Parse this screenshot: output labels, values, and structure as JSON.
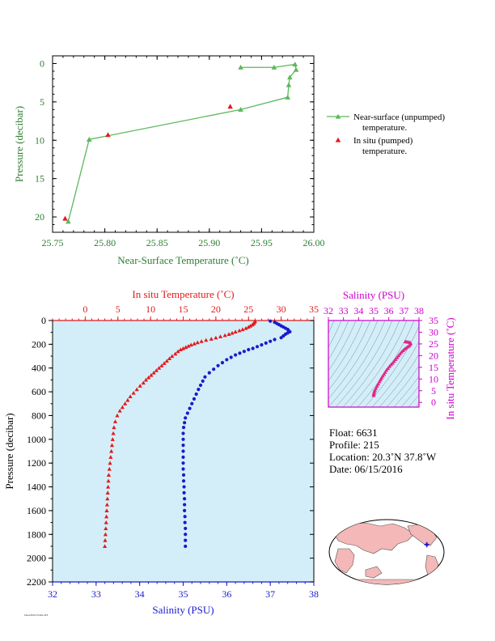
{
  "chart_data": [
    {
      "type": "line",
      "xlabel": "Near-Surface Temperature (˚C)",
      "ylabel": "Pressure (decibar)",
      "xlim": [
        25.75,
        26.0
      ],
      "ylim": [
        22,
        -1
      ],
      "xticks": [
        "25.75",
        "25.80",
        "25.85",
        "25.90",
        "25.95",
        "26.00"
      ],
      "yticks": [
        "0",
        "5",
        "10",
        "15",
        "20"
      ],
      "series": [
        {
          "name": "Near-surface (unpumped) temperature.",
          "color": "#5cb85c",
          "marker": "triangle",
          "points": [
            [
              25.93,
              0.5
            ],
            [
              25.962,
              0.5
            ],
            [
              25.982,
              0.1
            ],
            [
              25.983,
              0.8
            ],
            [
              25.977,
              1.8
            ],
            [
              25.976,
              2.8
            ],
            [
              25.975,
              4.4
            ],
            [
              25.93,
              6.0
            ],
            [
              25.785,
              9.9
            ],
            [
              25.765,
              20.6
            ]
          ]
        },
        {
          "name": "In situ (pumped) temperature.",
          "color": "#e31a1c",
          "marker": "triangle",
          "points": [
            [
              25.92,
              5.6
            ],
            [
              25.803,
              9.3
            ],
            [
              25.762,
              20.2
            ]
          ]
        }
      ],
      "legend": [
        "Near-surface (unpumped)",
        "temperature.",
        "In situ (pumped)",
        "temperature."
      ]
    },
    {
      "type": "scatter",
      "ylabel": "Pressure (decibar)",
      "top_xlabel": "In situ Temperature (˚C)",
      "bottom_xlabel": "Salinity (PSU)",
      "temp_lim": [
        -5,
        35
      ],
      "sal_lim": [
        32,
        38
      ],
      "ylim": [
        2200,
        0
      ],
      "top_ticks": [
        "0",
        "5",
        "10",
        "15",
        "20",
        "25",
        "30",
        "35"
      ],
      "bottom_ticks": [
        "32",
        "33",
        "34",
        "35",
        "36",
        "37",
        "38"
      ],
      "yticks": [
        "0",
        "200",
        "400",
        "600",
        "800",
        "1000",
        "1200",
        "1400",
        "1600",
        "1800",
        "2000",
        "2200"
      ],
      "temperature": [
        [
          26.0,
          5
        ],
        [
          25.9,
          15
        ],
        [
          25.8,
          25
        ],
        [
          25.6,
          35
        ],
        [
          25.3,
          45
        ],
        [
          25.0,
          55
        ],
        [
          24.6,
          65
        ],
        [
          24.1,
          75
        ],
        [
          23.6,
          85
        ],
        [
          23.0,
          95
        ],
        [
          22.5,
          105
        ],
        [
          22.0,
          115
        ],
        [
          21.4,
          125
        ],
        [
          20.7,
          135
        ],
        [
          20.0,
          145
        ],
        [
          19.3,
          155
        ],
        [
          18.5,
          165
        ],
        [
          17.8,
          175
        ],
        [
          17.2,
          185
        ],
        [
          16.7,
          195
        ],
        [
          16.2,
          205
        ],
        [
          15.8,
          215
        ],
        [
          15.4,
          225
        ],
        [
          15.0,
          235
        ],
        [
          14.6,
          245
        ],
        [
          14.2,
          260
        ],
        [
          13.8,
          280
        ],
        [
          13.3,
          300
        ],
        [
          12.9,
          320
        ],
        [
          12.5,
          340
        ],
        [
          12.1,
          360
        ],
        [
          11.7,
          380
        ],
        [
          11.3,
          400
        ],
        [
          10.9,
          420
        ],
        [
          10.5,
          440
        ],
        [
          10.1,
          460
        ],
        [
          9.7,
          480
        ],
        [
          9.3,
          500
        ],
        [
          8.9,
          525
        ],
        [
          8.4,
          550
        ],
        [
          7.9,
          580
        ],
        [
          7.4,
          610
        ],
        [
          6.9,
          640
        ],
        [
          6.5,
          670
        ],
        [
          6.1,
          700
        ],
        [
          5.7,
          730
        ],
        [
          5.3,
          760
        ],
        [
          4.9,
          800
        ],
        [
          4.6,
          850
        ],
        [
          4.4,
          900
        ],
        [
          4.3,
          950
        ],
        [
          4.2,
          1000
        ],
        [
          4.1,
          1050
        ],
        [
          4.0,
          1100
        ],
        [
          3.9,
          1150
        ],
        [
          3.8,
          1200
        ],
        [
          3.7,
          1250
        ],
        [
          3.6,
          1300
        ],
        [
          3.55,
          1350
        ],
        [
          3.5,
          1400
        ],
        [
          3.45,
          1450
        ],
        [
          3.4,
          1500
        ],
        [
          3.35,
          1550
        ],
        [
          3.3,
          1600
        ],
        [
          3.25,
          1650
        ],
        [
          3.2,
          1700
        ],
        [
          3.15,
          1750
        ],
        [
          3.1,
          1800
        ],
        [
          3.05,
          1850
        ],
        [
          3.0,
          1900
        ]
      ],
      "salinity": [
        [
          37.0,
          5
        ],
        [
          37.1,
          15
        ],
        [
          37.15,
          25
        ],
        [
          37.2,
          35
        ],
        [
          37.25,
          45
        ],
        [
          37.3,
          55
        ],
        [
          37.35,
          65
        ],
        [
          37.4,
          75
        ],
        [
          37.42,
          85
        ],
        [
          37.45,
          95
        ],
        [
          37.4,
          105
        ],
        [
          37.35,
          115
        ],
        [
          37.3,
          130
        ],
        [
          37.25,
          145
        ],
        [
          37.1,
          160
        ],
        [
          37.0,
          175
        ],
        [
          36.9,
          190
        ],
        [
          36.8,
          205
        ],
        [
          36.7,
          220
        ],
        [
          36.6,
          235
        ],
        [
          36.5,
          245
        ],
        [
          36.4,
          260
        ],
        [
          36.3,
          275
        ],
        [
          36.2,
          290
        ],
        [
          36.1,
          310
        ],
        [
          36.0,
          330
        ],
        [
          35.9,
          355
        ],
        [
          35.8,
          380
        ],
        [
          35.7,
          410
        ],
        [
          35.6,
          440
        ],
        [
          35.5,
          475
        ],
        [
          35.45,
          510
        ],
        [
          35.4,
          545
        ],
        [
          35.35,
          580
        ],
        [
          35.3,
          620
        ],
        [
          35.25,
          660
        ],
        [
          35.2,
          700
        ],
        [
          35.15,
          740
        ],
        [
          35.1,
          780
        ],
        [
          35.05,
          820
        ],
        [
          35.03,
          860
        ],
        [
          35.01,
          900
        ],
        [
          35.0,
          950
        ],
        [
          35.0,
          1000
        ],
        [
          35.0,
          1050
        ],
        [
          35.0,
          1100
        ],
        [
          35.0,
          1150
        ],
        [
          35.0,
          1200
        ],
        [
          35.0,
          1250
        ],
        [
          35.01,
          1300
        ],
        [
          35.01,
          1350
        ],
        [
          35.02,
          1400
        ],
        [
          35.02,
          1450
        ],
        [
          35.03,
          1500
        ],
        [
          35.03,
          1550
        ],
        [
          35.03,
          1600
        ],
        [
          35.04,
          1650
        ],
        [
          35.04,
          1700
        ],
        [
          35.05,
          1750
        ],
        [
          35.05,
          1800
        ],
        [
          35.05,
          1850
        ],
        [
          35.05,
          1900
        ]
      ]
    },
    {
      "type": "scatter",
      "top_xlabel": "Salinity (PSU)",
      "right_ylabel": "In situ Temperature (˚C)",
      "sal_lim": [
        32,
        38
      ],
      "temp_lim": [
        -2,
        35
      ],
      "top_ticks": [
        "32",
        "33",
        "34",
        "35",
        "36",
        "37",
        "38"
      ],
      "right_ticks": [
        "0",
        "5",
        "10",
        "15",
        "20",
        "25",
        "30",
        "35"
      ],
      "ts": [
        [
          35.0,
          3.0
        ],
        [
          35.0,
          3.5
        ],
        [
          35.02,
          4.0
        ],
        [
          35.04,
          4.6
        ],
        [
          35.08,
          5.3
        ],
        [
          35.15,
          6.1
        ],
        [
          35.22,
          7.0
        ],
        [
          35.3,
          7.9
        ],
        [
          35.38,
          8.9
        ],
        [
          35.45,
          9.7
        ],
        [
          35.52,
          10.5
        ],
        [
          35.6,
          11.3
        ],
        [
          35.68,
          12.1
        ],
        [
          35.76,
          12.9
        ],
        [
          35.85,
          13.8
        ],
        [
          35.95,
          14.6
        ],
        [
          36.05,
          15.4
        ],
        [
          36.15,
          16.2
        ],
        [
          36.25,
          16.8
        ],
        [
          36.35,
          17.6
        ],
        [
          36.45,
          18.4
        ],
        [
          36.55,
          19.2
        ],
        [
          36.65,
          20.0
        ],
        [
          36.75,
          20.8
        ],
        [
          36.85,
          21.6
        ],
        [
          36.95,
          22.2
        ],
        [
          37.05,
          22.8
        ],
        [
          37.15,
          23.3
        ],
        [
          37.25,
          23.8
        ],
        [
          37.35,
          24.2
        ],
        [
          37.42,
          24.8
        ],
        [
          37.45,
          25.3
        ],
        [
          37.4,
          25.6
        ],
        [
          37.3,
          25.8
        ],
        [
          37.2,
          25.9
        ],
        [
          37.1,
          26.0
        ]
      ]
    }
  ],
  "info": {
    "float": "Float:  6631",
    "profile": "Profile:  215",
    "location": "Location:  20.3˚N  37.8˚W",
    "date": "Date:  06/15/2016"
  },
  "footer": "Float 6631 Profile 215",
  "map": {
    "marker_lon": -37.8,
    "marker_lat": 20.3
  },
  "colors": {
    "top_axis": "#2e7d32",
    "near_surface": "#5cb85c",
    "in_situ": "#e31a1c",
    "salinity": "#1a1acd",
    "ts": "#e0278a",
    "ts_axis": "#cc00cc",
    "plot_bg": "#d3eef8",
    "land": "#f4b8b8"
  }
}
